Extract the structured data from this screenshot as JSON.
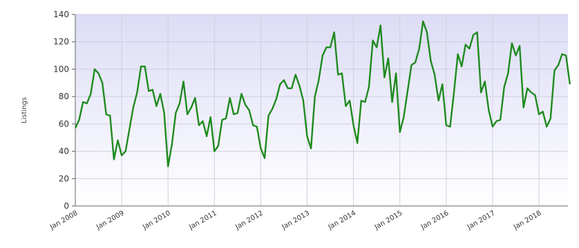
{
  "chart_data": {
    "type": "line",
    "title": "",
    "xlabel": "",
    "ylabel": "Listings",
    "ylim": [
      0,
      140
    ],
    "yticks": [
      0,
      20,
      40,
      60,
      80,
      100,
      120,
      140
    ],
    "xticks": [
      "Jan 2008",
      "Jan 2009",
      "Jan 2010",
      "Jan 2011",
      "Jan 2012",
      "Jan 2013",
      "Jan 2014",
      "Jan 2015",
      "Jan 2016",
      "Jan 2017",
      "Jan 2018"
    ],
    "grid": true,
    "legend": "none",
    "series_color": "#1f8a1f",
    "plot_background_top": "#dcdcf6",
    "plot_background_bottom": "#ffffff",
    "series": [
      {
        "x_start": "2008-01",
        "x_step": "month",
        "values": [
          57,
          63,
          76,
          75,
          82,
          100,
          97,
          90,
          67,
          66,
          34,
          48,
          37,
          40,
          56,
          72,
          83,
          102,
          102,
          84,
          85,
          73,
          82,
          68,
          29,
          45,
          68,
          75,
          91,
          67,
          72,
          79,
          59,
          62,
          51,
          65,
          40,
          44,
          63,
          64,
          79,
          67,
          68,
          82,
          74,
          70,
          59,
          58,
          42,
          35,
          66,
          71,
          78,
          89,
          92,
          86,
          86,
          96,
          88,
          77,
          51,
          42,
          80,
          92,
          110,
          116,
          116,
          127,
          96,
          97,
          73,
          77,
          59,
          46,
          77,
          76,
          87,
          121,
          116,
          132,
          94,
          108,
          76,
          97,
          54,
          65,
          84,
          103,
          105,
          115,
          135,
          127,
          106,
          96,
          77,
          89,
          59,
          58,
          83,
          111,
          102,
          118,
          115,
          125,
          127,
          83,
          91,
          70,
          58,
          62,
          63,
          87,
          97,
          119,
          110,
          117,
          72,
          86,
          83,
          81,
          67,
          69,
          58,
          64,
          99,
          103,
          111,
          110,
          89
        ]
      }
    ]
  }
}
